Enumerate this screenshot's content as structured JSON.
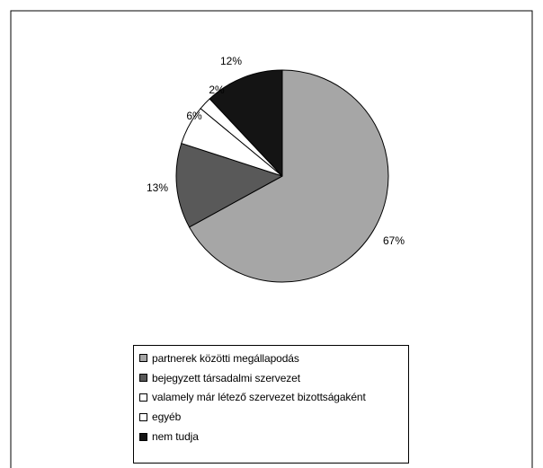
{
  "chart_data": {
    "type": "pie",
    "start_angle_deg": 0,
    "direction": "clockwise",
    "slices": [
      {
        "label": "partnerek közötti megállapodás",
        "value": 67,
        "value_label": "67%",
        "color": "#a6a6a6"
      },
      {
        "label": "bejegyzett társadalmi szervezet",
        "value": 13,
        "value_label": "13%",
        "color": "#595959"
      },
      {
        "label": "valamely már létező szervezet bizottságaként",
        "value": 6,
        "value_label": "6%",
        "color": "#ffffff"
      },
      {
        "label": "egyéb",
        "value": 2,
        "value_label": "2%",
        "color": "#ffffff"
      },
      {
        "label": "nem tudja",
        "value": 12,
        "value_label": "12%",
        "color": "#141414"
      }
    ],
    "legend_position": "bottom"
  }
}
